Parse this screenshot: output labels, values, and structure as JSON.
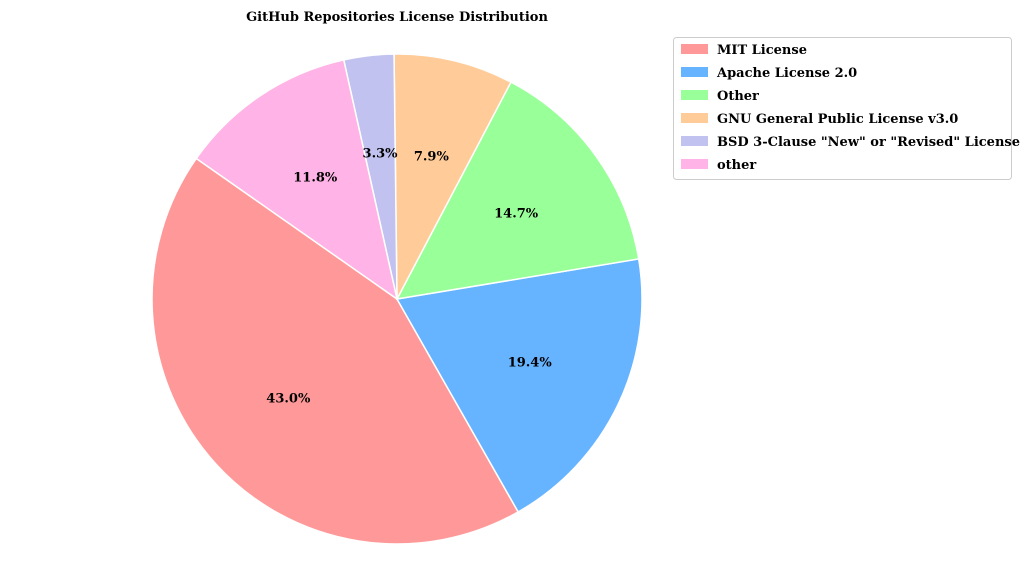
{
  "chart_data": {
    "type": "pie",
    "title": "GitHub Repositories License Distribution",
    "start_angle_deg": 145,
    "direction": "counterclockwise",
    "legend_position": "top-right",
    "slices": [
      {
        "label": "MIT License",
        "value": 43.0,
        "display": "43.0%",
        "color": "#ff9999"
      },
      {
        "label": "Apache License 2.0",
        "value": 19.4,
        "display": "19.4%",
        "color": "#66b3ff"
      },
      {
        "label": "Other",
        "value": 14.7,
        "display": "14.7%",
        "color": "#99ff99"
      },
      {
        "label": "GNU General Public License v3.0",
        "value": 7.9,
        "display": "7.9%",
        "color": "#ffcc99"
      },
      {
        "label": "BSD 3-Clause \"New\" or \"Revised\" License",
        "value": 3.3,
        "display": "3.3%",
        "color": "#c2c2f0"
      },
      {
        "label": "other",
        "value": 11.8,
        "display": "11.8%",
        "color": "#ffb3e6"
      }
    ]
  }
}
